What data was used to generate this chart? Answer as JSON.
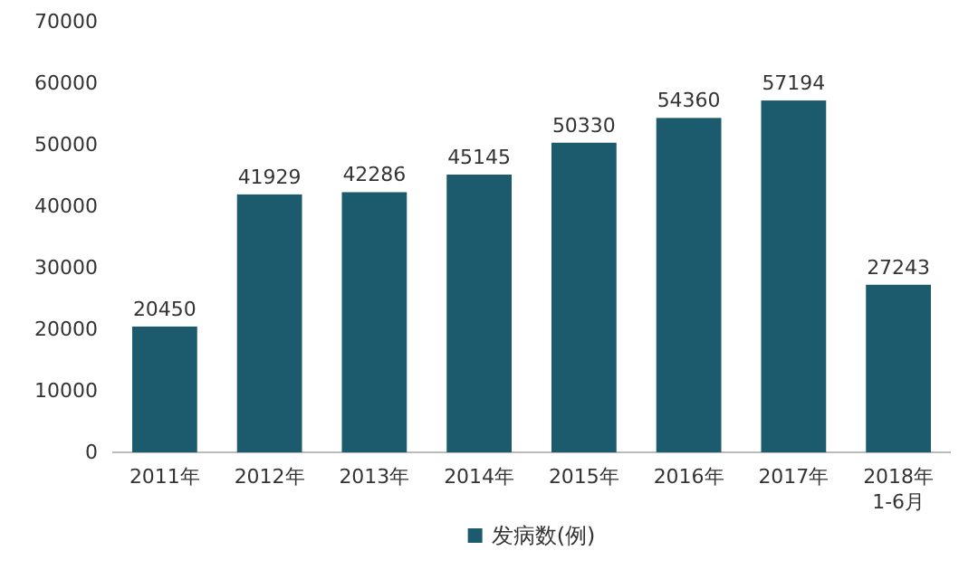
{
  "chart_data": {
    "type": "bar",
    "categories": [
      "2011年",
      "2012年",
      "2013年",
      "2014年",
      "2015年",
      "2016年",
      "2017年",
      "2018年\n1-6月"
    ],
    "series": [
      {
        "name": "发病数(例)",
        "color": "#1c5a6e",
        "values": [
          20450,
          41929,
          42286,
          45145,
          50330,
          54360,
          57194,
          27243
        ]
      }
    ],
    "ylim": [
      0,
      70000
    ],
    "yticks": [
      0,
      10000,
      20000,
      30000,
      40000,
      50000,
      60000,
      70000
    ],
    "data_labels": true,
    "legend": "bottom",
    "grid": false
  }
}
